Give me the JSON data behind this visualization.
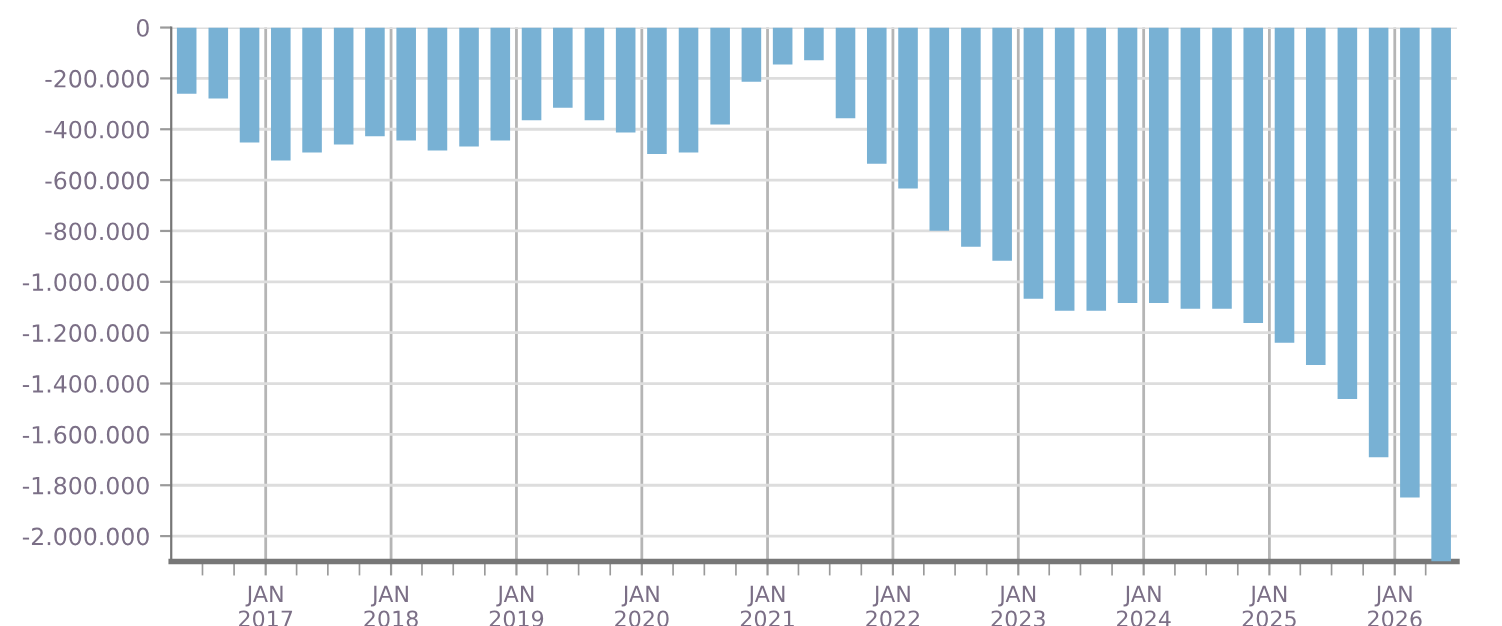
{
  "chart_data": {
    "type": "bar",
    "color": "#78b1d4",
    "grid": true,
    "x": [
      "2016-05-16",
      "2016-08-16",
      "2016-11-15",
      "2017-02-14",
      "2017-05-16",
      "2017-08-16",
      "2017-11-15",
      "2018-02-14",
      "2018-05-16",
      "2018-08-16",
      "2018-11-15",
      "2019-02-14",
      "2019-05-16",
      "2019-08-16",
      "2019-11-15",
      "2020-02-14",
      "2020-05-16",
      "2020-08-16",
      "2020-11-15",
      "2021-02-14",
      "2021-05-16",
      "2021-08-16",
      "2021-11-15",
      "2022-02-14",
      "2022-05-16",
      "2022-08-16",
      "2022-11-15",
      "2023-02-14",
      "2023-05-16",
      "2023-08-16",
      "2023-11-15",
      "2024-02-14",
      "2024-05-16",
      "2024-08-16",
      "2024-11-15",
      "2025-02-14",
      "2025-05-16",
      "2025-08-16",
      "2025-11-15",
      "2026-02-14",
      "2026-05-16"
    ],
    "values": [
      -260000,
      -279000,
      -452000,
      -523000,
      -491000,
      -460000,
      -428000,
      -444000,
      -484000,
      -468000,
      -444000,
      -365000,
      -315000,
      -365000,
      -413000,
      -497000,
      -491000,
      -381000,
      -213000,
      -145000,
      -129000,
      -357000,
      -536000,
      -633000,
      -799000,
      -862000,
      -917000,
      -1067000,
      -1114000,
      -1114000,
      -1083000,
      -1083000,
      -1106000,
      -1106000,
      -1162000,
      -1240000,
      -1327000,
      -1461000,
      -1690000,
      -1848000,
      -2100000
    ],
    "xlim": [
      "2016-04-01",
      "2026-07-01"
    ],
    "xticks": [
      {
        "value": "2016-07-01",
        "label": null
      },
      {
        "value": "2016-10-01",
        "label": null
      },
      {
        "value": "2017-01-01",
        "label": "JAN\n2017"
      },
      {
        "value": "2017-04-01",
        "label": null
      },
      {
        "value": "2017-07-01",
        "label": null
      },
      {
        "value": "2017-10-01",
        "label": null
      },
      {
        "value": "2018-01-01",
        "label": "JAN\n2018"
      },
      {
        "value": "2018-04-01",
        "label": null
      },
      {
        "value": "2018-07-01",
        "label": null
      },
      {
        "value": "2018-10-01",
        "label": null
      },
      {
        "value": "2019-01-01",
        "label": "JAN\n2019"
      },
      {
        "value": "2019-04-01",
        "label": null
      },
      {
        "value": "2019-07-01",
        "label": null
      },
      {
        "value": "2019-10-01",
        "label": null
      },
      {
        "value": "2020-01-01",
        "label": "JAN\n2020"
      },
      {
        "value": "2020-04-01",
        "label": null
      },
      {
        "value": "2020-07-01",
        "label": null
      },
      {
        "value": "2020-10-01",
        "label": null
      },
      {
        "value": "2021-01-01",
        "label": "JAN\n2021"
      },
      {
        "value": "2021-04-01",
        "label": null
      },
      {
        "value": "2021-07-01",
        "label": null
      },
      {
        "value": "2021-10-01",
        "label": null
      },
      {
        "value": "2022-01-01",
        "label": "JAN\n2022"
      },
      {
        "value": "2022-04-01",
        "label": null
      },
      {
        "value": "2022-07-01",
        "label": null
      },
      {
        "value": "2022-10-01",
        "label": null
      },
      {
        "value": "2023-01-01",
        "label": "JAN\n2023"
      },
      {
        "value": "2023-04-01",
        "label": null
      },
      {
        "value": "2023-07-01",
        "label": null
      },
      {
        "value": "2023-10-01",
        "label": null
      },
      {
        "value": "2024-01-01",
        "label": "JAN\n2024"
      },
      {
        "value": "2024-04-01",
        "label": null
      },
      {
        "value": "2024-07-01",
        "label": null
      },
      {
        "value": "2024-10-01",
        "label": null
      },
      {
        "value": "2025-01-01",
        "label": "JAN\n2025"
      },
      {
        "value": "2025-04-01",
        "label": null
      },
      {
        "value": "2025-07-01",
        "label": null
      },
      {
        "value": "2025-10-01",
        "label": null
      },
      {
        "value": "2026-01-01",
        "label": "JAN\n2026"
      },
      {
        "value": "2026-04-01",
        "label": null
      }
    ],
    "ylim": [
      -2100000,
      0
    ],
    "yticks": [
      0,
      {
        "value": -200000,
        "label": "-200.000"
      },
      {
        "value": -400000,
        "label": "-400.000"
      },
      {
        "value": -600000,
        "label": "-600.000"
      },
      {
        "value": -800000,
        "label": "-800.000"
      },
      {
        "value": -1000000,
        "label": "-1.000.000"
      },
      {
        "value": -1200000,
        "label": "-1.200.000"
      },
      {
        "value": -1400000,
        "label": "-1.400.000"
      },
      {
        "value": -1600000,
        "label": "-1.600.000"
      },
      {
        "value": -1800000,
        "label": "-1.800.000"
      },
      {
        "value": -2000000,
        "label": "-2.000.000"
      }
    ]
  }
}
